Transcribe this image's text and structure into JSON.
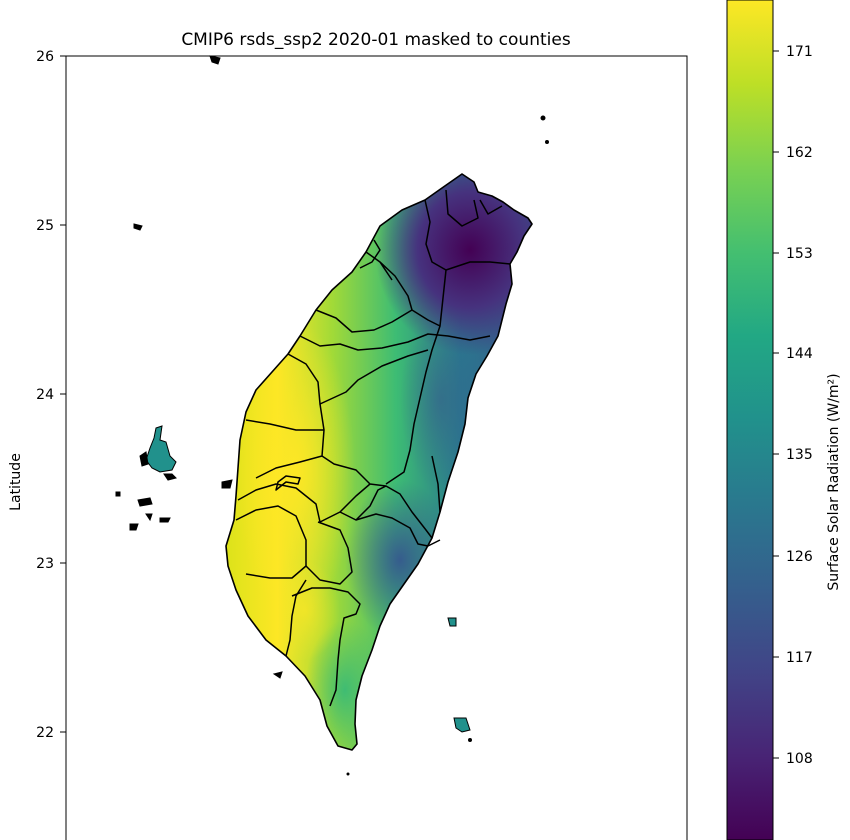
{
  "title": "CMIP6 rsds_ssp2 2020-01 masked to counties",
  "ylabel": "Latitude",
  "colorbar": {
    "label": "Surface Solar Radiation (W/m²)",
    "ticks": [
      "171",
      "162",
      "153",
      "144",
      "135",
      "126",
      "117",
      "108"
    ],
    "colormap": "viridis",
    "range": [
      99,
      176
    ]
  },
  "lat_axis": {
    "ticks": [
      "26",
      "25",
      "24",
      "23",
      "22"
    ],
    "range": [
      21.4,
      26
    ]
  },
  "colors": {
    "low": "#440154",
    "mid": "#21918c",
    "high": "#fde725"
  }
}
